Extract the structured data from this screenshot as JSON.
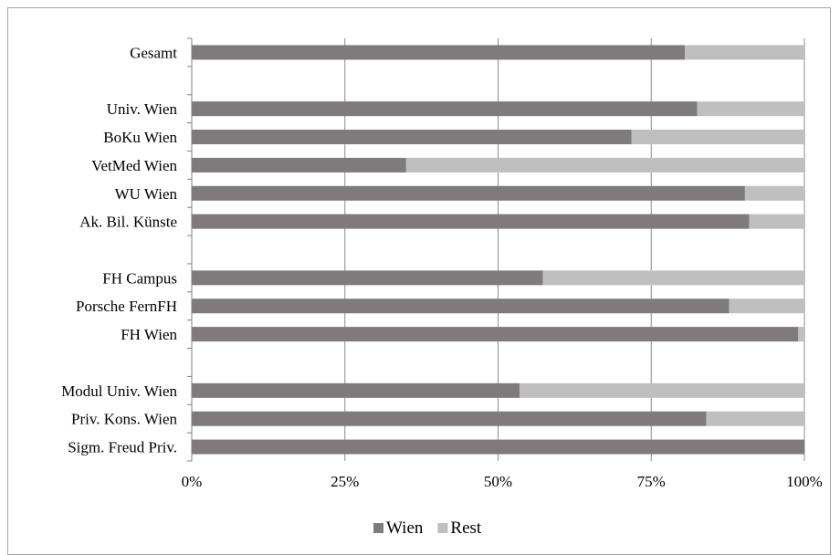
{
  "chart_data": {
    "type": "bar",
    "orientation": "horizontal",
    "stacked": "percent",
    "categories": [
      "Gesamt",
      "",
      "Univ. Wien",
      "BoKu Wien",
      "VetMed Wien",
      "WU Wien",
      "Ak. Bil. Künste",
      "",
      "FH Campus",
      "Porsche FernFH",
      "FH Wien",
      "",
      "Modul Univ. Wien",
      "Priv. Kons. Wien",
      "Sigm. Freud Priv."
    ],
    "series": [
      {
        "name": "Wien",
        "values": [
          80.5,
          null,
          82.5,
          71.8,
          35,
          90.3,
          91,
          null,
          57.3,
          87.7,
          99,
          null,
          53.5,
          84,
          100
        ]
      },
      {
        "name": "Rest",
        "values": [
          19.5,
          null,
          17.5,
          28.2,
          65,
          9.7,
          9,
          null,
          42.7,
          12.3,
          1,
          null,
          46.5,
          16,
          0
        ]
      }
    ],
    "xlim": [
      0,
      100
    ],
    "xticks": [
      "0%",
      "25%",
      "50%",
      "75%",
      "100%"
    ],
    "grid": true,
    "legend_position": "bottom",
    "colors": {
      "Wien": "#7f7b7c",
      "Rest": "#bfbfbf"
    }
  }
}
